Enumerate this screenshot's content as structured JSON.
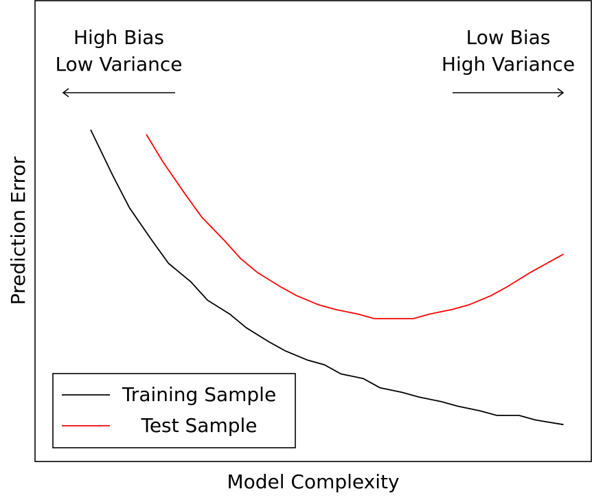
{
  "chart_data": {
    "type": "line",
    "title": "",
    "xlabel": "Model Complexity",
    "ylabel": "Prediction Error",
    "x_ticks": "none",
    "y_ticks": "none",
    "grid": false,
    "legend_position": "bottom-left",
    "xlim": [
      0,
      1
    ],
    "ylim": [
      0,
      1
    ],
    "series": [
      {
        "name": "Training Sample",
        "color": "#000000",
        "x": [
          0.1,
          0.14,
          0.17,
          0.21,
          0.24,
          0.28,
          0.31,
          0.35,
          0.38,
          0.42,
          0.45,
          0.49,
          0.52,
          0.55,
          0.59,
          0.62,
          0.66,
          0.69,
          0.73,
          0.76,
          0.8,
          0.83,
          0.87,
          0.9,
          0.95
        ],
        "values": [
          0.72,
          0.62,
          0.55,
          0.48,
          0.43,
          0.39,
          0.35,
          0.32,
          0.29,
          0.26,
          0.24,
          0.22,
          0.21,
          0.19,
          0.18,
          0.16,
          0.15,
          0.14,
          0.13,
          0.12,
          0.11,
          0.1,
          0.1,
          0.09,
          0.08
        ]
      },
      {
        "name": "Test Sample",
        "color": "#ff0000",
        "x": [
          0.2,
          0.23,
          0.27,
          0.3,
          0.34,
          0.37,
          0.4,
          0.44,
          0.47,
          0.51,
          0.54,
          0.58,
          0.61,
          0.64,
          0.68,
          0.71,
          0.75,
          0.78,
          0.82,
          0.85,
          0.89,
          0.92,
          0.95
        ],
        "values": [
          0.71,
          0.65,
          0.58,
          0.53,
          0.48,
          0.44,
          0.41,
          0.38,
          0.36,
          0.34,
          0.33,
          0.32,
          0.31,
          0.31,
          0.31,
          0.32,
          0.33,
          0.34,
          0.36,
          0.38,
          0.41,
          0.43,
          0.45
        ]
      }
    ],
    "annotations": [
      {
        "lines": [
          "High Bias",
          "Low Variance"
        ],
        "direction": "left"
      },
      {
        "lines": [
          "Low Bias",
          "High Variance"
        ],
        "direction": "right"
      }
    ]
  }
}
